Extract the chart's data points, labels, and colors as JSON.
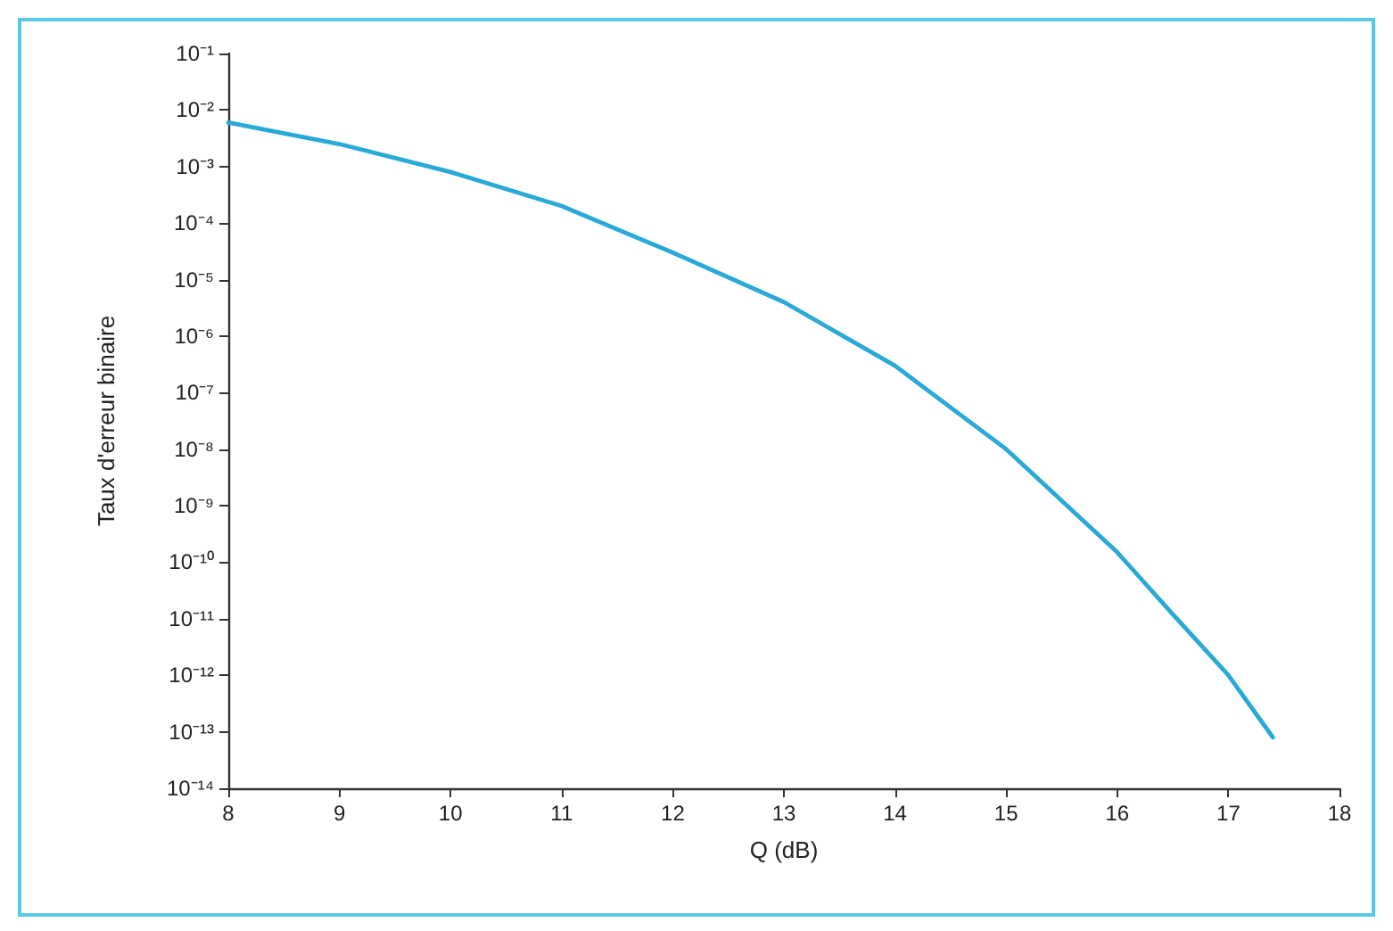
{
  "chart_data": {
    "type": "line",
    "xlabel": "Q (dB)",
    "ylabel": "Taux d'erreur binaire",
    "log": "y",
    "x": [
      8,
      9,
      10,
      11,
      12,
      13,
      14,
      15,
      16,
      16.5,
      17,
      17.4
    ],
    "series": [
      {
        "color": "#29a9d6",
        "values": [
          0.006,
          0.0025,
          0.0008,
          0.0002,
          3e-05,
          4e-06,
          3e-07,
          1e-08,
          1.5e-10,
          1.2e-11,
          1e-12,
          8e-14
        ]
      }
    ],
    "xlim": [
      8,
      18
    ],
    "xticks": [
      8,
      9,
      10,
      11,
      12,
      13,
      14,
      15,
      16,
      17,
      18
    ],
    "ylim": [
      1e-14,
      0.1
    ],
    "yticks": [
      {
        "value": 0.1,
        "label": "10⁻¹"
      },
      {
        "value": 0.01,
        "label": "10⁻²"
      },
      {
        "value": 0.001,
        "label": "10⁻³"
      },
      {
        "value": 0.0001,
        "label": "10⁻⁴"
      },
      {
        "value": 1e-05,
        "label": "10⁻⁵"
      },
      {
        "value": 1e-06,
        "label": "10⁻⁶"
      },
      {
        "value": 1e-07,
        "label": "10⁻⁷"
      },
      {
        "value": 1e-08,
        "label": "10⁻⁸"
      },
      {
        "value": 1e-09,
        "label": "10⁻⁹"
      },
      {
        "value": 1e-10,
        "label": "10⁻¹⁰"
      },
      {
        "value": 1e-11,
        "label": "10⁻¹¹"
      },
      {
        "value": 1e-12,
        "label": "10⁻¹²"
      },
      {
        "value": 1e-13,
        "label": "10⁻¹³"
      },
      {
        "value": 1e-14,
        "label": "10⁻¹⁴"
      }
    ],
    "grid": false,
    "marker": "none",
    "line_style": "solid"
  }
}
